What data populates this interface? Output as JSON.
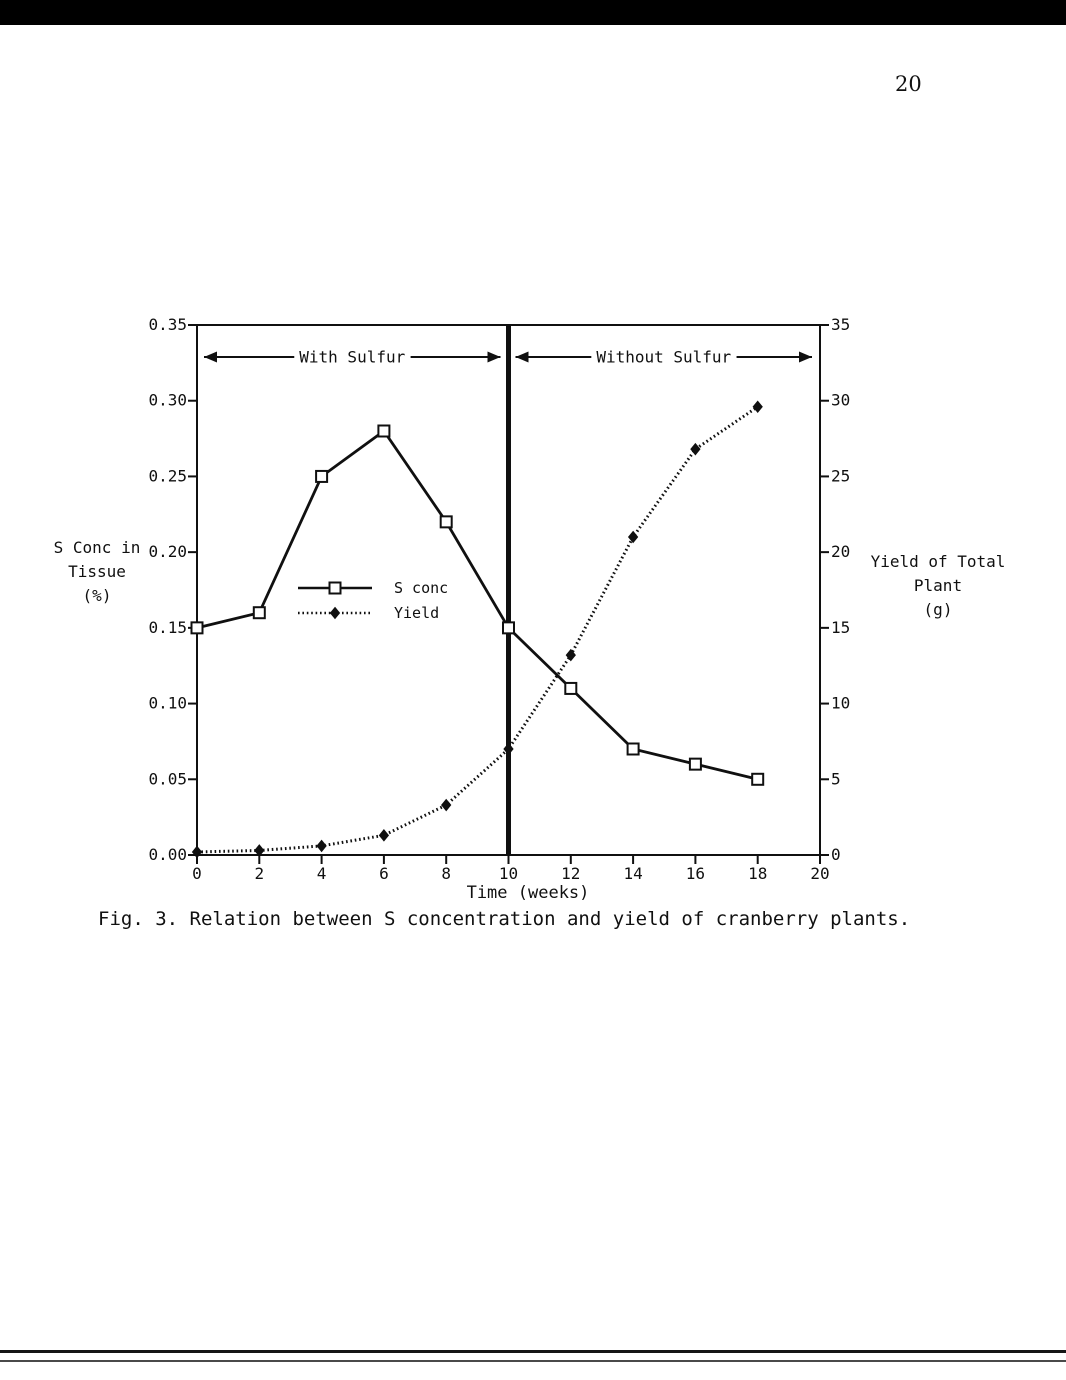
{
  "page": {
    "number": "20",
    "caption": "Fig. 3. Relation between S concentration and yield of cranberry plants."
  },
  "chart_data": {
    "type": "line",
    "title": "Fig. 3. Relation between S concentration and yield of cranberry plants.",
    "x_label": "Time (weeks)",
    "x_range": [
      0,
      20
    ],
    "x_ticks": [
      0,
      2,
      4,
      6,
      8,
      10,
      12,
      14,
      16,
      18,
      20
    ],
    "left_axis": {
      "title_lines": [
        "S Conc in",
        "Tissue",
        "(%)"
      ],
      "range": [
        0,
        0.35
      ],
      "ticks": [
        0.0,
        0.05,
        0.1,
        0.15,
        0.2,
        0.25,
        0.3,
        0.35
      ],
      "tick_decimals": 2
    },
    "right_axis": {
      "title_lines": [
        "Yield of Total",
        "Plant",
        "(g)"
      ],
      "range": [
        0,
        35
      ],
      "ticks": [
        0,
        5,
        10,
        15,
        20,
        25,
        30,
        35
      ],
      "tick_decimals": 0
    },
    "x": [
      0,
      2,
      4,
      6,
      8,
      10,
      12,
      14,
      16,
      18
    ],
    "series": [
      {
        "name": "S conc",
        "axis": "left",
        "marker": "open-square",
        "line": "solid",
        "values": [
          0.15,
          0.16,
          0.25,
          0.28,
          0.22,
          0.15,
          0.11,
          0.07,
          0.06,
          0.05
        ]
      },
      {
        "name": "Yield",
        "axis": "right",
        "marker": "filled-diamond",
        "line": "dotted",
        "values": [
          0.2,
          0.3,
          0.6,
          1.3,
          3.3,
          7.0,
          13.2,
          21.0,
          26.8,
          29.6
        ]
      }
    ],
    "divider_x": 10,
    "annotations": [
      {
        "text": "With Sulfur",
        "x_start": 0,
        "x_end": 10
      },
      {
        "text": "Without Sulfur",
        "x_start": 10,
        "x_end": 20
      }
    ],
    "legend": {
      "position": "center-left"
    },
    "grid": "off"
  }
}
